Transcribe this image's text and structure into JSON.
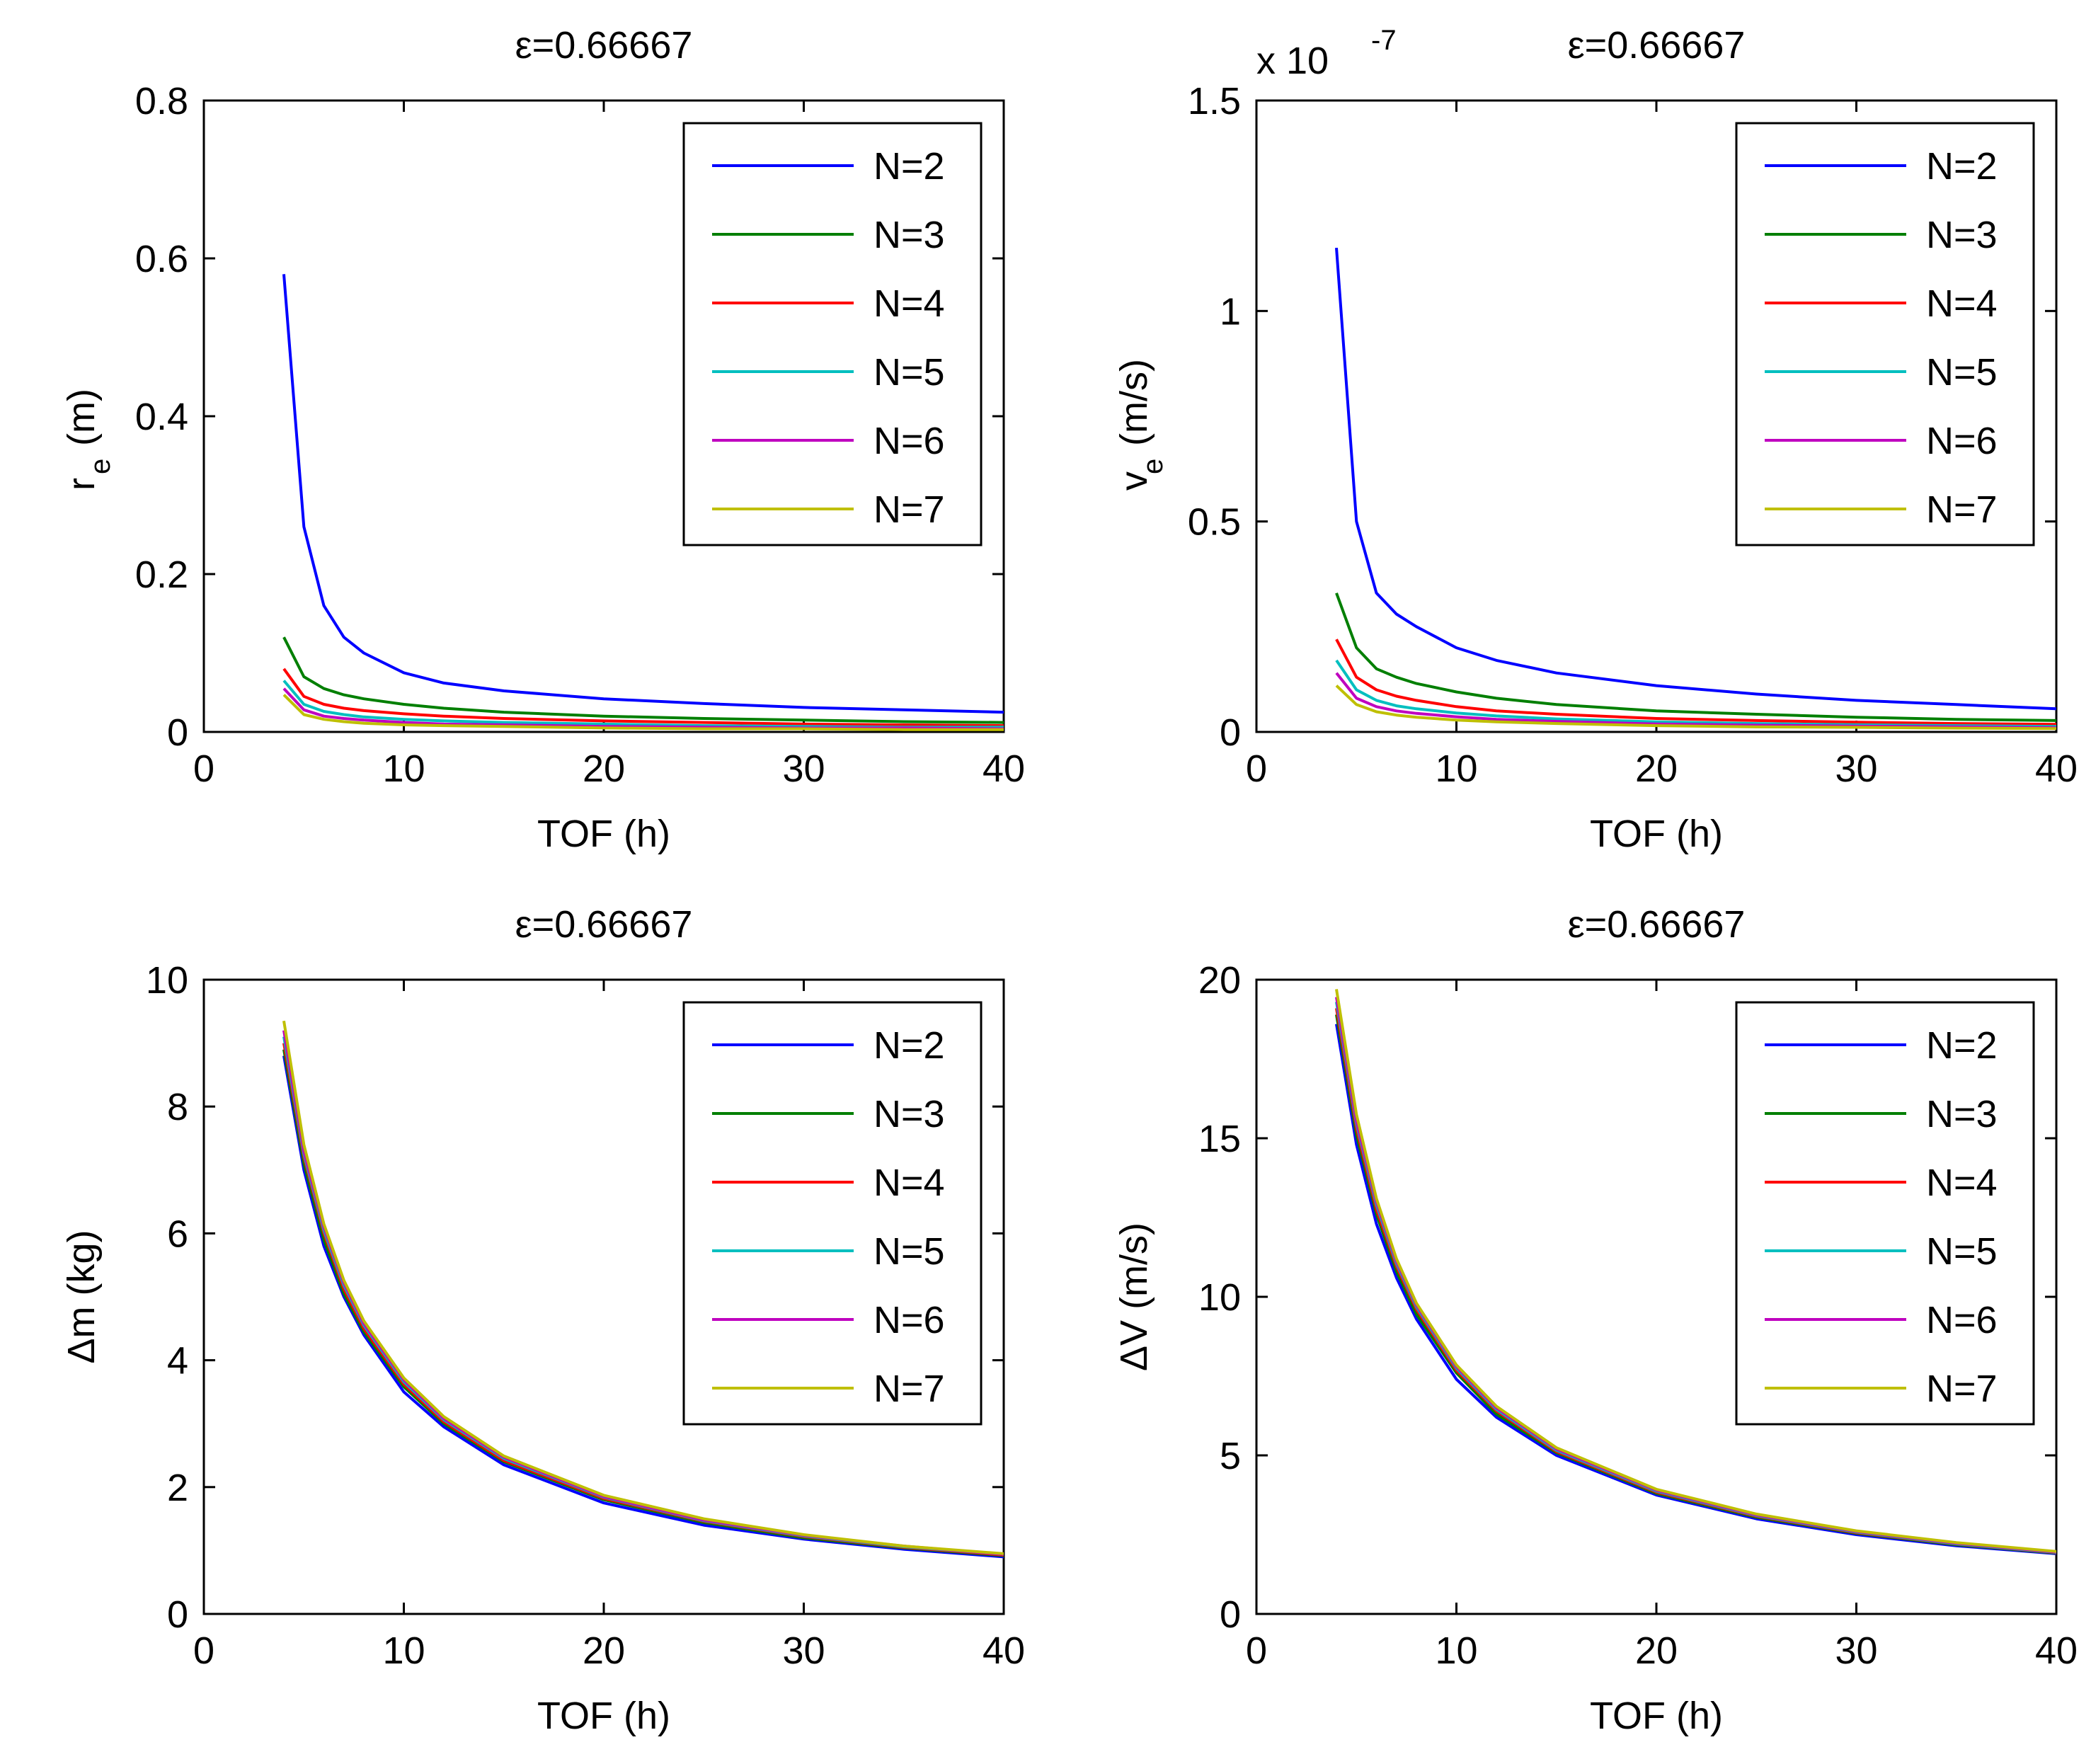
{
  "chart_data": [
    {
      "type": "line",
      "title": "ε=0.66667",
      "xlabel": "TOF (h)",
      "ylabel": "r",
      "ylabel_sub": "e",
      "ylabel_unit": "(m)",
      "exponent_label": "",
      "exponent_power": "",
      "xlim": [
        0,
        40
      ],
      "ylim": [
        0,
        0.8
      ],
      "xticks": [
        "0",
        "10",
        "20",
        "30",
        "40"
      ],
      "yticks": [
        "0",
        "0.2",
        "0.4",
        "0.6",
        "0.8"
      ],
      "legend_position": "top-right",
      "x": [
        4,
        5,
        6,
        7,
        8,
        10,
        12,
        15,
        20,
        25,
        30,
        35,
        40
      ],
      "series": [
        {
          "name": "N=2",
          "color": "#0000ff",
          "values": [
            0.58,
            0.26,
            0.16,
            0.12,
            0.1,
            0.075,
            0.062,
            0.052,
            0.042,
            0.036,
            0.031,
            0.028,
            0.025
          ]
        },
        {
          "name": "N=3",
          "color": "#007f00",
          "values": [
            0.12,
            0.07,
            0.055,
            0.047,
            0.042,
            0.035,
            0.03,
            0.025,
            0.02,
            0.017,
            0.015,
            0.013,
            0.012
          ]
        },
        {
          "name": "N=4",
          "color": "#ff0000",
          "values": [
            0.08,
            0.045,
            0.035,
            0.03,
            0.027,
            0.023,
            0.02,
            0.017,
            0.014,
            0.012,
            0.01,
            0.009,
            0.008
          ]
        },
        {
          "name": "N=5",
          "color": "#00bfbf",
          "values": [
            0.065,
            0.035,
            0.026,
            0.022,
            0.019,
            0.016,
            0.014,
            0.012,
            0.01,
            0.008,
            0.007,
            0.006,
            0.006
          ]
        },
        {
          "name": "N=6",
          "color": "#bf00bf",
          "values": [
            0.055,
            0.028,
            0.02,
            0.017,
            0.015,
            0.012,
            0.01,
            0.009,
            0.007,
            0.006,
            0.005,
            0.005,
            0.004
          ]
        },
        {
          "name": "N=7",
          "color": "#bfbf00",
          "values": [
            0.047,
            0.022,
            0.016,
            0.013,
            0.011,
            0.009,
            0.008,
            0.007,
            0.005,
            0.004,
            0.004,
            0.003,
            0.003
          ]
        }
      ]
    },
    {
      "type": "line",
      "title": "ε=0.66667",
      "xlabel": "TOF (h)",
      "ylabel": "v",
      "ylabel_sub": "e",
      "ylabel_unit": "(m/s)",
      "exponent_label": "x 10",
      "exponent_power": "-7",
      "xlim": [
        0,
        40
      ],
      "ylim": [
        0,
        1.5
      ],
      "xticks": [
        "0",
        "10",
        "20",
        "30",
        "40"
      ],
      "yticks": [
        "0",
        "0.5",
        "1",
        "1.5"
      ],
      "legend_position": "top-right",
      "x": [
        4,
        5,
        6,
        7,
        8,
        10,
        12,
        15,
        20,
        25,
        30,
        35,
        40
      ],
      "series": [
        {
          "name": "N=2",
          "color": "#0000ff",
          "values": [
            1.15,
            0.5,
            0.33,
            0.28,
            0.25,
            0.2,
            0.17,
            0.14,
            0.11,
            0.09,
            0.075,
            0.065,
            0.055
          ]
        },
        {
          "name": "N=3",
          "color": "#007f00",
          "values": [
            0.33,
            0.2,
            0.15,
            0.13,
            0.115,
            0.095,
            0.08,
            0.065,
            0.05,
            0.042,
            0.035,
            0.03,
            0.027
          ]
        },
        {
          "name": "N=4",
          "color": "#ff0000",
          "values": [
            0.22,
            0.13,
            0.1,
            0.085,
            0.075,
            0.06,
            0.05,
            0.042,
            0.032,
            0.027,
            0.023,
            0.02,
            0.018
          ]
        },
        {
          "name": "N=5",
          "color": "#00bfbf",
          "values": [
            0.17,
            0.1,
            0.075,
            0.062,
            0.055,
            0.045,
            0.038,
            0.031,
            0.024,
            0.02,
            0.017,
            0.015,
            0.013
          ]
        },
        {
          "name": "N=6",
          "color": "#bf00bf",
          "values": [
            0.14,
            0.08,
            0.06,
            0.05,
            0.044,
            0.036,
            0.03,
            0.025,
            0.019,
            0.016,
            0.014,
            0.012,
            0.01
          ]
        },
        {
          "name": "N=7",
          "color": "#bfbf00",
          "values": [
            0.11,
            0.065,
            0.048,
            0.04,
            0.035,
            0.028,
            0.024,
            0.02,
            0.015,
            0.012,
            0.011,
            0.009,
            0.008
          ]
        }
      ]
    },
    {
      "type": "line",
      "title": "ε=0.66667",
      "xlabel": "TOF (h)",
      "ylabel": "Δm (kg)",
      "ylabel_sub": "",
      "ylabel_unit": "",
      "exponent_label": "",
      "exponent_power": "",
      "xlim": [
        0,
        40
      ],
      "ylim": [
        0,
        10
      ],
      "xticks": [
        "0",
        "10",
        "20",
        "30",
        "40"
      ],
      "yticks": [
        "0",
        "2",
        "4",
        "6",
        "8",
        "10"
      ],
      "legend_position": "top-right",
      "x": [
        4,
        5,
        6,
        7,
        8,
        10,
        12,
        15,
        20,
        25,
        30,
        35,
        40
      ],
      "series": [
        {
          "name": "N=2",
          "color": "#0000ff",
          "values": [
            8.8,
            7.0,
            5.8,
            5.0,
            4.4,
            3.5,
            2.95,
            2.35,
            1.75,
            1.4,
            1.18,
            1.02,
            0.9
          ]
        },
        {
          "name": "N=3",
          "color": "#007f00",
          "values": [
            8.9,
            7.1,
            5.9,
            5.05,
            4.45,
            3.58,
            3.0,
            2.4,
            1.8,
            1.44,
            1.2,
            1.04,
            0.92
          ]
        },
        {
          "name": "N=4",
          "color": "#ff0000",
          "values": [
            9.0,
            7.2,
            6.0,
            5.12,
            4.5,
            3.62,
            3.03,
            2.42,
            1.82,
            1.46,
            1.22,
            1.05,
            0.93
          ]
        },
        {
          "name": "N=5",
          "color": "#00bfbf",
          "values": [
            9.1,
            7.25,
            6.05,
            5.18,
            4.55,
            3.66,
            3.06,
            2.45,
            1.84,
            1.47,
            1.23,
            1.06,
            0.94
          ]
        },
        {
          "name": "N=6",
          "color": "#bf00bf",
          "values": [
            9.2,
            7.3,
            6.1,
            5.22,
            4.58,
            3.69,
            3.08,
            2.47,
            1.85,
            1.48,
            1.24,
            1.07,
            0.94
          ]
        },
        {
          "name": "N=7",
          "color": "#bfbf00",
          "values": [
            9.35,
            7.4,
            6.15,
            5.26,
            4.62,
            3.72,
            3.11,
            2.49,
            1.87,
            1.5,
            1.25,
            1.07,
            0.95
          ]
        }
      ]
    },
    {
      "type": "line",
      "title": "ε=0.66667",
      "xlabel": "TOF (h)",
      "ylabel": "ΔV (m/s)",
      "ylabel_sub": "",
      "ylabel_unit": "",
      "exponent_label": "",
      "exponent_power": "",
      "xlim": [
        0,
        40
      ],
      "ylim": [
        0,
        20
      ],
      "xticks": [
        "0",
        "10",
        "20",
        "30",
        "40"
      ],
      "yticks": [
        "0",
        "5",
        "10",
        "15",
        "20"
      ],
      "legend_position": "top-right",
      "x": [
        4,
        5,
        6,
        7,
        8,
        10,
        12,
        15,
        20,
        25,
        30,
        35,
        40
      ],
      "series": [
        {
          "name": "N=2",
          "color": "#0000ff",
          "values": [
            18.6,
            14.8,
            12.3,
            10.6,
            9.3,
            7.4,
            6.2,
            5.0,
            3.75,
            3.0,
            2.5,
            2.15,
            1.9
          ]
        },
        {
          "name": "N=3",
          "color": "#007f00",
          "values": [
            18.9,
            15.1,
            12.6,
            10.8,
            9.45,
            7.6,
            6.3,
            5.08,
            3.8,
            3.05,
            2.54,
            2.18,
            1.92
          ]
        },
        {
          "name": "N=4",
          "color": "#ff0000",
          "values": [
            19.1,
            15.3,
            12.75,
            10.95,
            9.6,
            7.68,
            6.4,
            5.12,
            3.84,
            3.08,
            2.56,
            2.2,
            1.93
          ]
        },
        {
          "name": "N=5",
          "color": "#00bfbf",
          "values": [
            19.3,
            15.45,
            12.9,
            11.05,
            9.68,
            7.75,
            6.45,
            5.16,
            3.87,
            3.1,
            2.58,
            2.21,
            1.94
          ]
        },
        {
          "name": "N=6",
          "color": "#bf00bf",
          "values": [
            19.45,
            15.55,
            13.0,
            11.12,
            9.74,
            7.8,
            6.5,
            5.2,
            3.9,
            3.12,
            2.6,
            2.23,
            1.95
          ]
        },
        {
          "name": "N=7",
          "color": "#bfbf00",
          "values": [
            19.7,
            15.75,
            13.1,
            11.2,
            9.8,
            7.85,
            6.55,
            5.24,
            3.93,
            3.15,
            2.62,
            2.25,
            1.97
          ]
        }
      ]
    }
  ]
}
